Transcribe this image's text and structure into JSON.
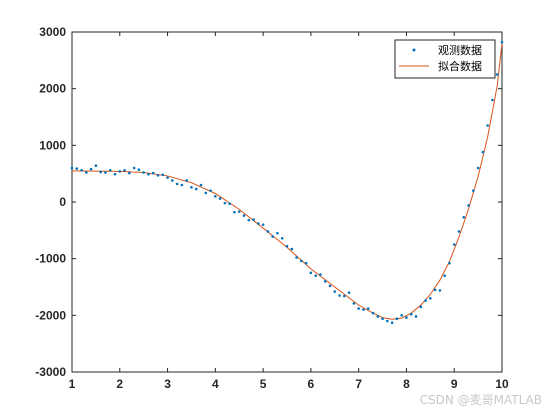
{
  "chart_data": {
    "type": "scatter",
    "title": "",
    "xlabel": "",
    "ylabel": "",
    "xlim": [
      1,
      10
    ],
    "ylim": [
      -3000,
      3000
    ],
    "xticks": [
      "1",
      "2",
      "3",
      "4",
      "5",
      "6",
      "7",
      "8",
      "9",
      "10"
    ],
    "yticks": [
      "-3000",
      "-2000",
      "-1000",
      "0",
      "1000",
      "2000",
      "3000"
    ],
    "grid": false,
    "legend_position": "top-right",
    "series": [
      {
        "name": "观测数据",
        "kind": "scatter",
        "color": "#0072BD",
        "x": [
          1.0,
          1.1,
          1.2,
          1.3,
          1.4,
          1.5,
          1.6,
          1.7,
          1.8,
          1.9,
          2.0,
          2.1,
          2.2,
          2.3,
          2.4,
          2.5,
          2.6,
          2.7,
          2.8,
          2.9,
          3.0,
          3.1,
          3.2,
          3.3,
          3.4,
          3.5,
          3.6,
          3.7,
          3.8,
          3.9,
          4.0,
          4.1,
          4.2,
          4.3,
          4.4,
          4.5,
          4.6,
          4.7,
          4.8,
          4.9,
          5.0,
          5.1,
          5.2,
          5.3,
          5.4,
          5.5,
          5.6,
          5.7,
          5.8,
          5.9,
          6.0,
          6.1,
          6.2,
          6.3,
          6.4,
          6.5,
          6.6,
          6.7,
          6.8,
          6.9,
          7.0,
          7.1,
          7.2,
          7.3,
          7.4,
          7.5,
          7.6,
          7.7,
          7.8,
          7.9,
          8.0,
          8.1,
          8.2,
          8.3,
          8.4,
          8.5,
          8.6,
          8.7,
          8.8,
          8.9,
          9.0,
          9.1,
          9.2,
          9.3,
          9.4,
          9.5,
          9.6,
          9.7,
          9.8,
          9.9,
          10.0
        ],
        "y": [
          600,
          590,
          560,
          520,
          580,
          640,
          530,
          520,
          560,
          490,
          540,
          560,
          510,
          600,
          570,
          520,
          490,
          510,
          470,
          480,
          430,
          380,
          320,
          300,
          380,
          260,
          230,
          300,
          160,
          200,
          100,
          60,
          -20,
          -30,
          -180,
          -170,
          -240,
          -320,
          -310,
          -380,
          -400,
          -520,
          -610,
          -550,
          -640,
          -780,
          -830,
          -980,
          -1040,
          -1080,
          -1250,
          -1300,
          -1280,
          -1400,
          -1480,
          -1580,
          -1650,
          -1660,
          -1600,
          -1790,
          -1880,
          -1900,
          -1880,
          -1960,
          -2020,
          -2060,
          -2100,
          -2130,
          -2060,
          -2000,
          -2040,
          -1980,
          -2020,
          -1850,
          -1740,
          -1700,
          -1550,
          -1560,
          -1300,
          -1080,
          -750,
          -520,
          -270,
          -60,
          200,
          600,
          880,
          1350,
          1800,
          2250,
          2820
        ]
      },
      {
        "name": "拟合数据",
        "kind": "line",
        "color": "#D95319",
        "x": [
          1.0,
          1.5,
          2.0,
          2.5,
          3.0,
          3.5,
          4.0,
          4.5,
          5.0,
          5.5,
          6.0,
          6.5,
          7.0,
          7.3,
          7.5,
          7.7,
          7.9,
          8.1,
          8.3,
          8.5,
          8.7,
          8.9,
          9.1,
          9.3,
          9.5,
          9.7,
          9.9,
          10.0
        ],
        "y": [
          550,
          545,
          540,
          520,
          460,
          340,
          150,
          -130,
          -460,
          -800,
          -1180,
          -1500,
          -1820,
          -1960,
          -2040,
          -2070,
          -2050,
          -1960,
          -1820,
          -1630,
          -1380,
          -1050,
          -620,
          -120,
          450,
          1150,
          2050,
          2800
        ]
      }
    ]
  },
  "watermark": "CSDN @麦哥MATLAB"
}
